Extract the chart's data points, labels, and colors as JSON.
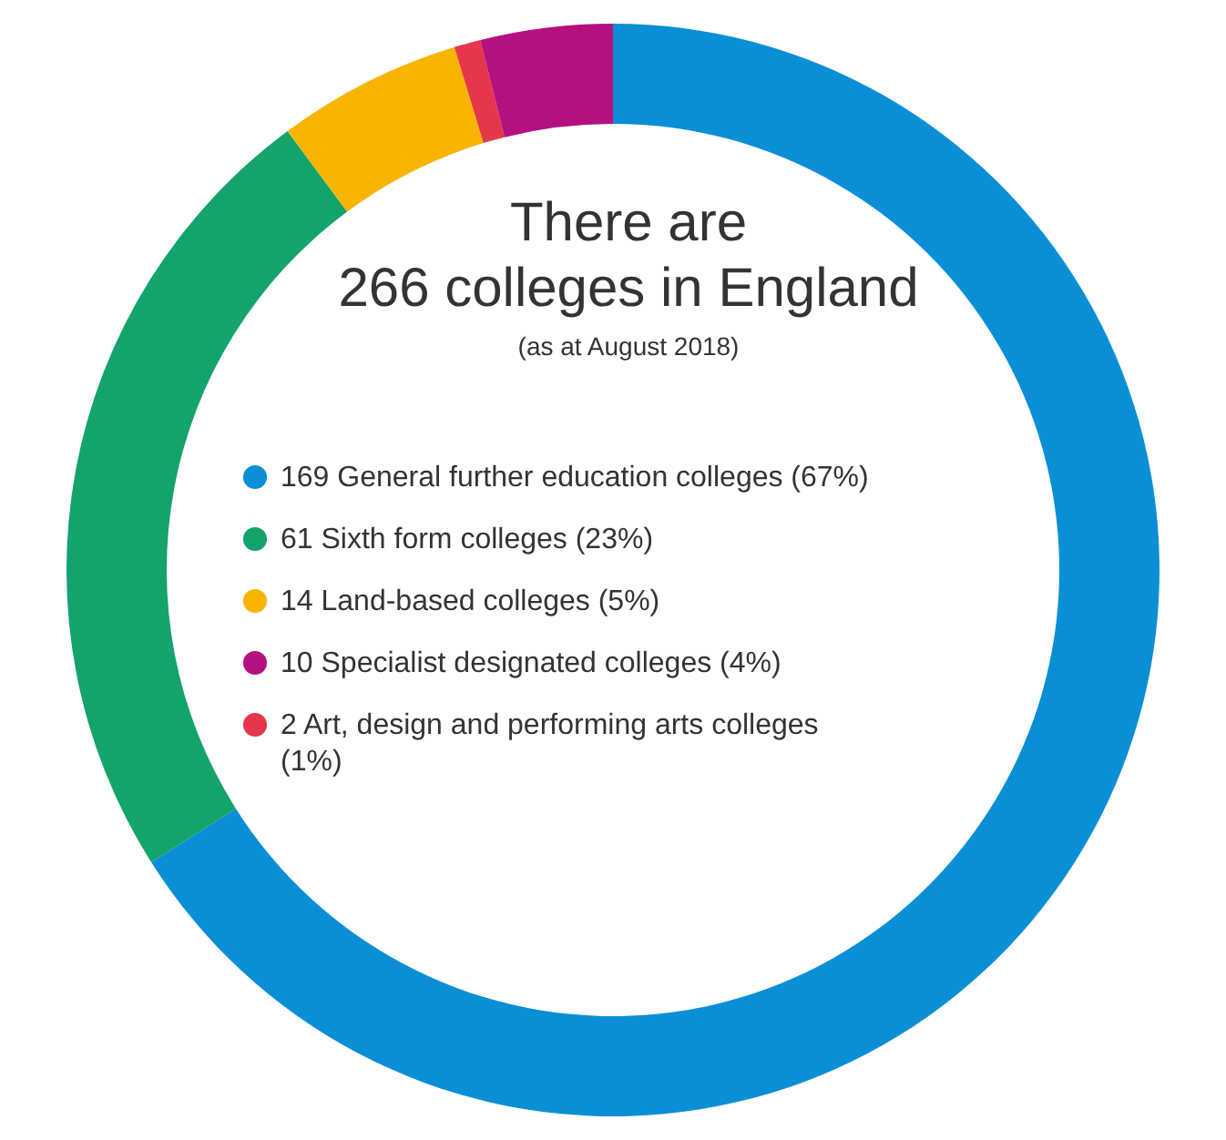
{
  "chart_data": {
    "type": "donut",
    "title": "There are\n266 colleges in England",
    "subtitle": "(as at August 2018)",
    "categories": [
      "169 General further education colleges (67%)",
      "61 Sixth form colleges (23%)",
      "14 Land-based colleges (5%)",
      "2 Art, design and performing arts colleges (1%)",
      "10 Specialist designated colleges (4%)"
    ],
    "values": [
      169,
      61,
      14,
      2,
      10
    ],
    "colors": [
      "#0a8fd6",
      "#13a36b",
      "#f7b500",
      "#e5364a",
      "#b5117e"
    ],
    "legend": "center"
  }
}
